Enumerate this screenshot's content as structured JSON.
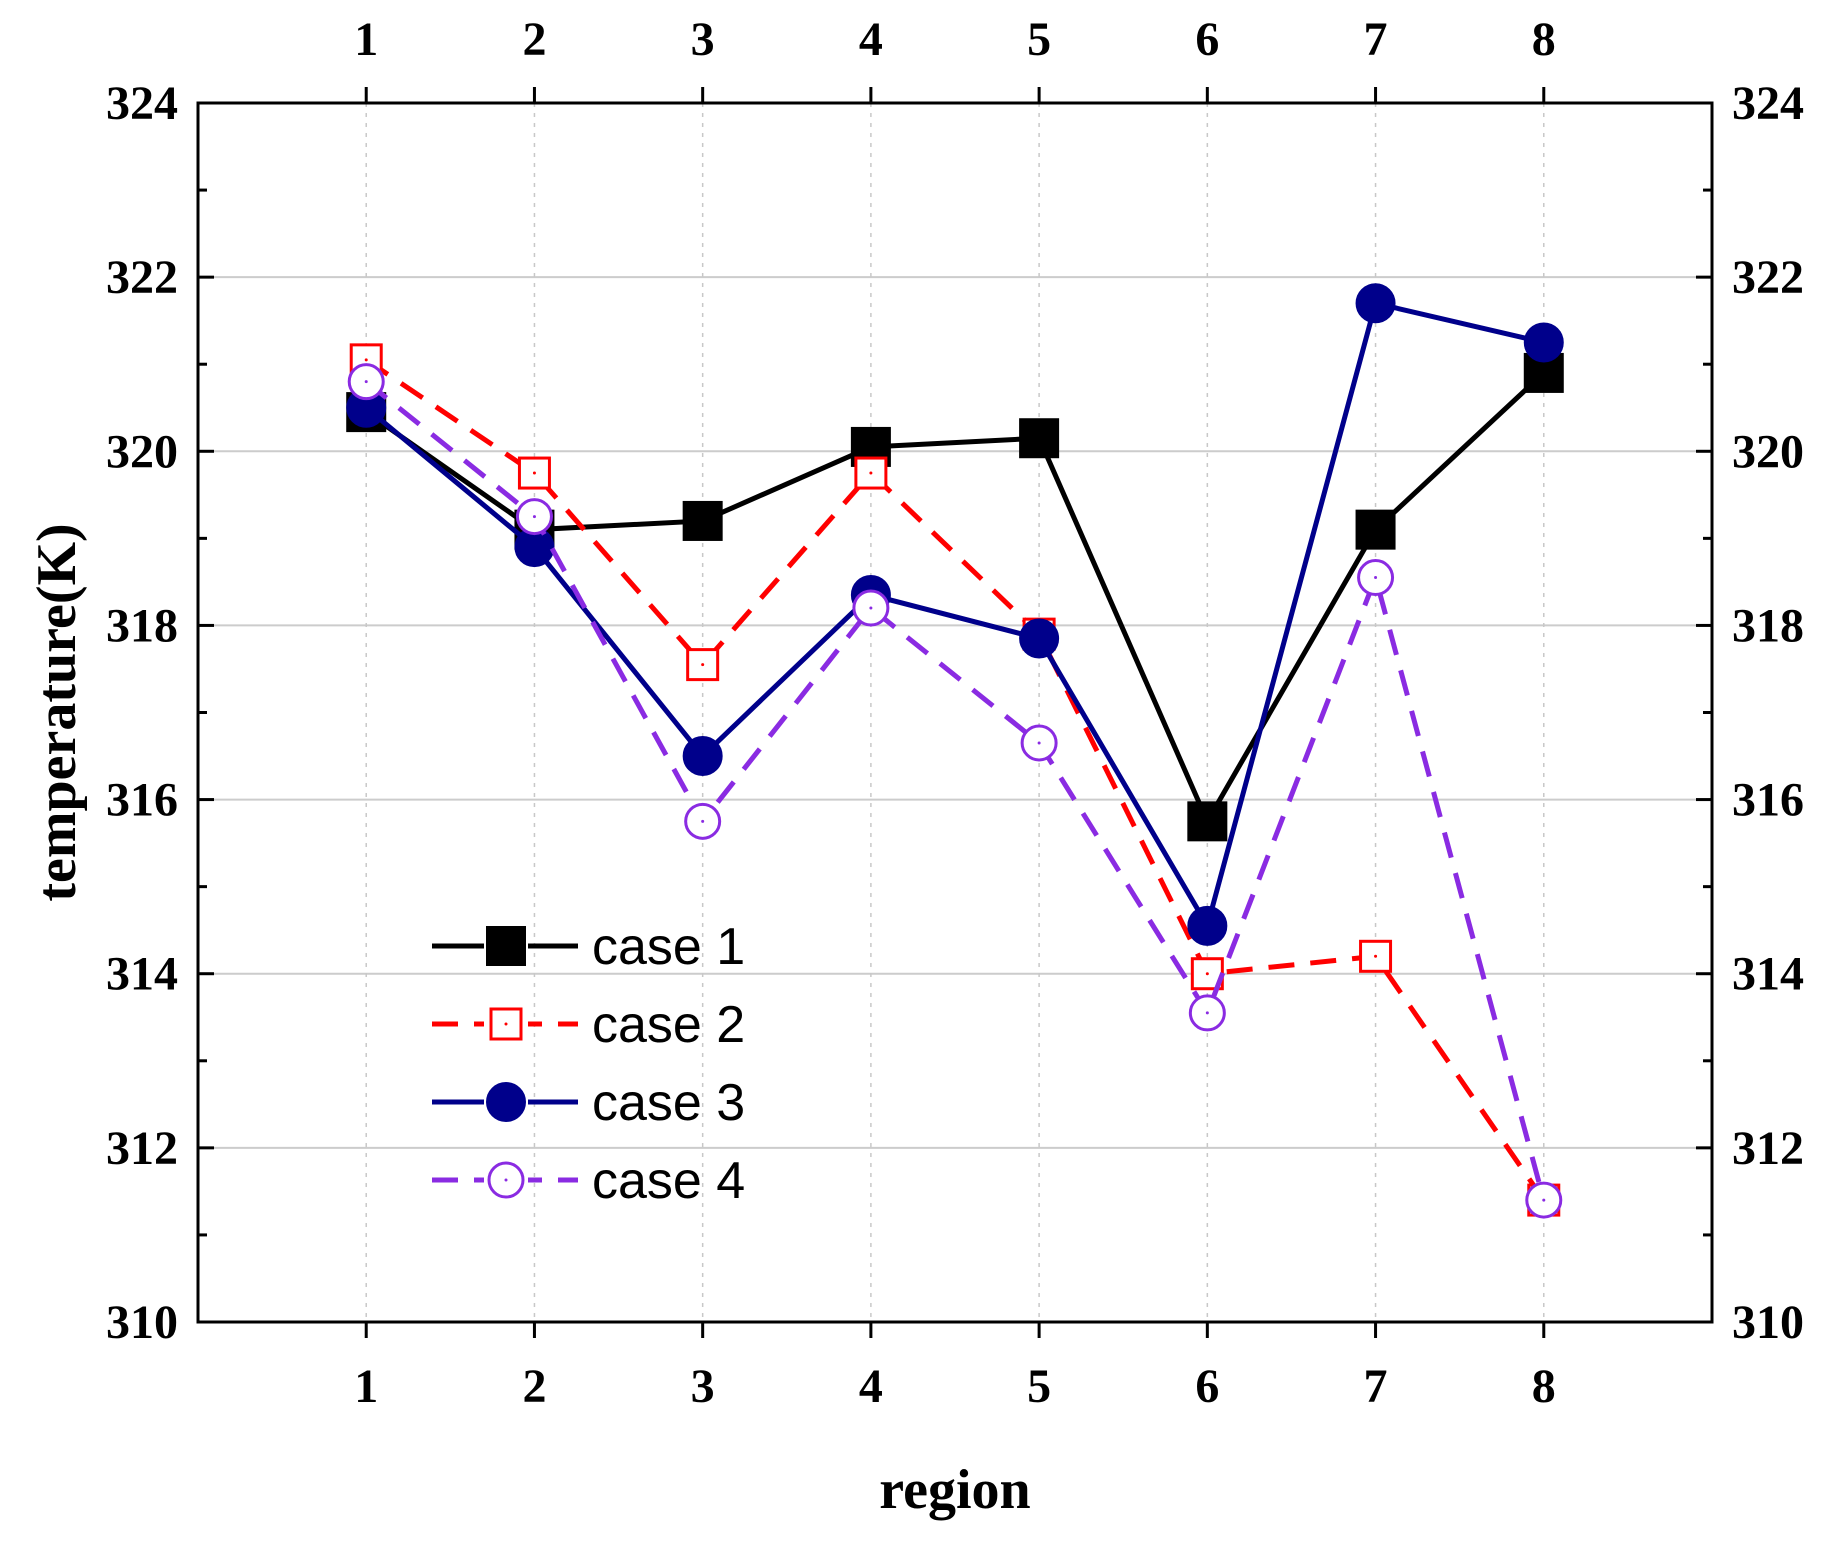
{
  "chart_data": {
    "type": "line",
    "title": "",
    "xlabel": "region",
    "ylabel": "temperature(K)",
    "categories": [
      "1",
      "2",
      "3",
      "4",
      "5",
      "6",
      "7",
      "8"
    ],
    "x": [
      1,
      2,
      3,
      4,
      5,
      6,
      7,
      8
    ],
    "xlim": [
      0,
      9
    ],
    "ylim": [
      310,
      324
    ],
    "yticks": [
      310,
      312,
      314,
      316,
      318,
      320,
      322,
      324
    ],
    "grid": true,
    "legend_position": "bottom-left",
    "series": [
      {
        "name": "case 1",
        "values": [
          320.45,
          319.1,
          319.2,
          320.05,
          320.15,
          315.75,
          319.1,
          320.9
        ],
        "color": "#000000",
        "line": "solid",
        "marker": "square-filled"
      },
      {
        "name": "case 2",
        "values": [
          321.05,
          319.75,
          317.55,
          319.75,
          317.9,
          314.0,
          314.2,
          311.4
        ],
        "color": "#ff0000",
        "line": "dashed",
        "marker": "square-open"
      },
      {
        "name": "case 3",
        "values": [
          320.5,
          318.9,
          316.5,
          318.35,
          317.85,
          314.55,
          321.7,
          321.25
        ],
        "color": "#00008b",
        "line": "solid",
        "marker": "circle-filled"
      },
      {
        "name": "case 4",
        "values": [
          320.8,
          319.25,
          315.75,
          318.2,
          316.65,
          313.55,
          318.55,
          311.4
        ],
        "color": "#8a2be2",
        "line": "dashed",
        "marker": "circle-open"
      }
    ]
  }
}
